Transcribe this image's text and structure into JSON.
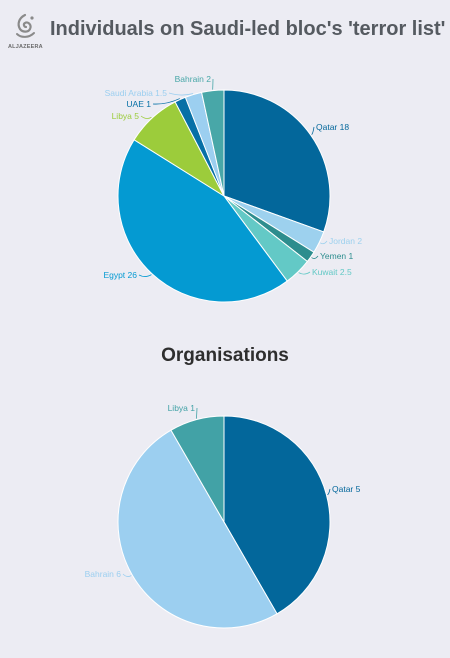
{
  "header": {
    "logo_text": "ALJAZEERA",
    "title": "Individuals on Saudi-led bloc's 'terror list'"
  },
  "chart_data": [
    {
      "type": "pie",
      "title": "Individuals on Saudi-led bloc's 'terror list'",
      "slices": [
        {
          "label": "Qatar",
          "value": 18,
          "color": "#03679b"
        },
        {
          "label": "Jordan",
          "value": 2,
          "color": "#9dd1ee"
        },
        {
          "label": "Yemen",
          "value": 1,
          "color": "#2d8d8e"
        },
        {
          "label": "Kuwait",
          "value": 2.5,
          "color": "#63c9c6"
        },
        {
          "label": "Egypt",
          "value": 26,
          "color": "#049ad2"
        },
        {
          "label": "Libya",
          "value": 5,
          "color": "#9ccc3b"
        },
        {
          "label": "UAE",
          "value": 1,
          "color": "#0770a6"
        },
        {
          "label": "Saudi Arabia",
          "value": 1.5,
          "color": "#9ccff0"
        },
        {
          "label": "Bahrain",
          "value": 2,
          "color": "#48a7a8"
        }
      ]
    },
    {
      "type": "pie",
      "title": "Organisations",
      "slices": [
        {
          "label": "Qatar",
          "value": 5,
          "color": "#03679b"
        },
        {
          "label": "Bahrain",
          "value": 6,
          "color": "#9ccff0"
        },
        {
          "label": "Libya",
          "value": 1,
          "color": "#42a2a6"
        }
      ]
    }
  ]
}
